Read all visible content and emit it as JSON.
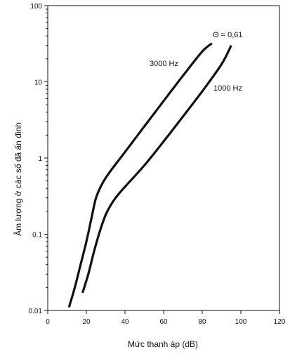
{
  "chart_data": {
    "type": "line",
    "title": "",
    "xlabel": "Mức thanh áp (dB)",
    "ylabel": "Âm lượng ở các số đã ấn định",
    "xlim": [
      0,
      120
    ],
    "ylim": [
      0.01,
      100
    ],
    "yscale": "log",
    "grid": false,
    "xticks": [
      0,
      20,
      40,
      60,
      80,
      100,
      120
    ],
    "xtick_labels": [
      "0",
      "20",
      "40",
      "60",
      "80",
      "100",
      "120"
    ],
    "yticks": [
      0.01,
      0.1,
      1,
      10,
      100
    ],
    "ytick_labels": [
      "0.01",
      "0.1",
      "1",
      "10",
      "100"
    ],
    "series": [
      {
        "name": "3000 Hz",
        "x": [
          11,
          14,
          17,
          20,
          23,
          25,
          28,
          32,
          40,
          50,
          60,
          70,
          80,
          85
        ],
        "y": [
          0.011,
          0.02,
          0.04,
          0.08,
          0.18,
          0.3,
          0.45,
          0.65,
          1.2,
          2.6,
          5.6,
          12.0,
          25.0,
          32.0
        ]
      },
      {
        "name": "1000 Hz",
        "x": [
          18,
          21,
          24,
          27,
          30,
          33,
          36,
          40,
          50,
          60,
          70,
          80,
          90,
          95
        ],
        "y": [
          0.017,
          0.03,
          0.06,
          0.11,
          0.18,
          0.25,
          0.32,
          0.42,
          0.8,
          1.65,
          3.5,
          7.5,
          17.0,
          30.0
        ]
      }
    ],
    "annotations": [
      {
        "text": "Θ = 0,61"
      },
      {
        "text": "3000 Hz"
      },
      {
        "text": "1000 Hz"
      }
    ],
    "line_color": "#111111"
  }
}
